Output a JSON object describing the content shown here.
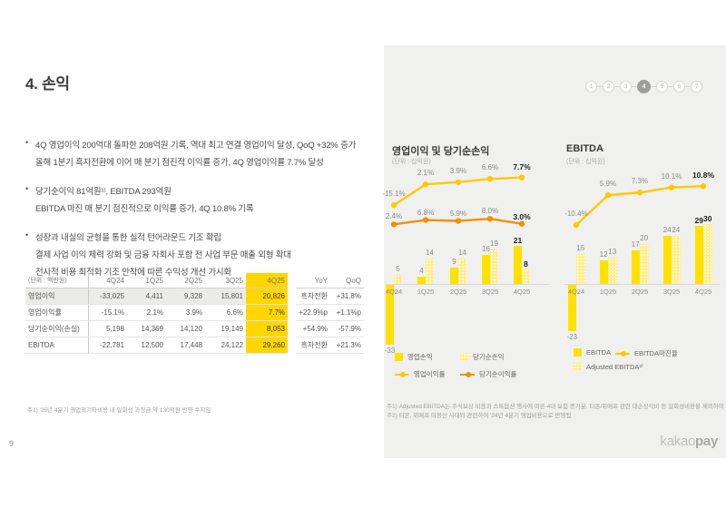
{
  "header": {
    "title": "4. 손익"
  },
  "bullets": [
    {
      "lines": [
        "4Q 영업이익 200억대 돌파한 208억원 기록, 역대 최고 연결 영업이익 달성, QoQ +32% 증가",
        "올해 1분기 흑자전환에 이어 매 분기 점진적 이익률 증가, 4Q 영업이익률 7.7% 달성"
      ]
    },
    {
      "lines": [
        "당기순이익 81억원¹⁾, EBITDA 293억원",
        "EBITDA 마진 매 분기 점진적으로 이익률 증가, 4Q 10.8% 기록"
      ]
    },
    {
      "lines": [
        "성장과 내실의 균형을 통한 실적 턴어라운드 기조 확립",
        "결제 사업 이익 체력 강화 및 금융 자회사 포함 전 사업 부문 매출 외형 확대",
        "전사적 비용 최적화 기조 안착에 따른 수익성 개선 가시화"
      ]
    }
  ],
  "table": {
    "unit_label": "(단위 : 백만원)",
    "columns": [
      "4Q24",
      "1Q25",
      "2Q25",
      "3Q25",
      "4Q25"
    ],
    "extra_columns": [
      "YoY",
      "QoQ"
    ],
    "rows": [
      {
        "label": "영업이익",
        "values": [
          "-33,025",
          "4,411",
          "9,328",
          "15,801",
          "20,826"
        ],
        "yoy": "흑자전환",
        "qoq": "+31.8%",
        "highlight_row": true
      },
      {
        "label": "영업이익률",
        "values": [
          "-15.1%",
          "2.1%",
          "3.9%",
          "6.6%",
          "7.7%"
        ],
        "yoy": "+22.9%p",
        "qoq": "+1.1%p",
        "highlight_row": false
      },
      {
        "label": "당기순이익(손실)",
        "values": [
          "5,198",
          "14,369",
          "14,120",
          "19,149",
          "8,053"
        ],
        "yoy": "+54.9%",
        "qoq": "-57.9%",
        "highlight_row": false
      },
      {
        "label": "EBITDA",
        "values": [
          "-22,781",
          "12,500",
          "17,448",
          "24,122",
          "29,260"
        ],
        "yoy": "흑자전환",
        "qoq": "+21.3%",
        "highlight_row": false
      }
    ]
  },
  "chart_data": [
    {
      "type": "bar",
      "title": "영업이익 및 당기순손익",
      "unit": "(단위 : 십억원)",
      "categories": [
        "4Q24",
        "1Q25",
        "2Q25",
        "3Q25",
        "4Q25"
      ],
      "series": [
        {
          "name": "영업손익",
          "type": "bar",
          "style": "solid",
          "values": [
            -33,
            4,
            9,
            16,
            21
          ]
        },
        {
          "name": "당기순손익",
          "type": "bar",
          "style": "pattern",
          "values": [
            5,
            14,
            14,
            19,
            8
          ]
        },
        {
          "name": "영업이익률",
          "type": "line",
          "color": "#FFC800",
          "labels": [
            "-15.1%",
            "2.1%",
            "3.9%",
            "6.6%",
            "7.7%"
          ]
        },
        {
          "name": "당기순이익률",
          "type": "line",
          "color": "#F29000",
          "labels": [
            "2.4%",
            "6.8%",
            "5.9%",
            "8.0%",
            "3.0%"
          ]
        }
      ],
      "legend_position": "bottom"
    },
    {
      "type": "bar",
      "title": "EBITDA",
      "unit": "(단위 : 십억원)",
      "categories": [
        "4Q24",
        "1Q25",
        "2Q25",
        "3Q25",
        "4Q25"
      ],
      "series": [
        {
          "name": "EBITDA",
          "type": "bar",
          "style": "solid",
          "values": [
            -23,
            12,
            17,
            24,
            29
          ]
        },
        {
          "name": "Adjusted EBITDA²⁾",
          "type": "bar",
          "style": "pattern",
          "values": [
            15,
            13,
            20,
            24,
            30
          ]
        },
        {
          "name": "EBITDA마진율",
          "type": "line",
          "color": "#FFC800",
          "labels": [
            "-10.4%",
            "5.9%",
            "7.3%",
            "10.1%",
            "10.8%"
          ]
        }
      ],
      "legend_position": "bottom"
    }
  ],
  "pagination": {
    "pages": [
      "1",
      "2",
      "3",
      "4",
      "5",
      "6",
      "7"
    ],
    "active_index": 3
  },
  "footnotes": {
    "left": "주1) '25년 4분기 영업외기타비용 내 일회성 과징금 약 130억원 반영 수치임",
    "right": [
      "주1) Adjusted EBITDA는 주식보상 비용과 스톡옵션 행사에 따른 4대 보험 증가분, 티몬/위메프 관련 대손상각비 등 일회성비용을 제외하여 계산",
      "주2) 티몬, 위메프 미정산 사태와 관련하여 '24년 4분기 영업비용으로 반영됨"
    ]
  },
  "footer": {
    "page_number": "9",
    "logo_kakao": "kakao",
    "logo_pay": "pay"
  },
  "colors": {
    "highlight_column": "#FFD600",
    "bar_solid": "#FFE100",
    "bar_pattern": "#FFEE8F",
    "line_yellow": "#FFC800",
    "line_orange": "#F29000",
    "panel_background": "#F0F0EE"
  }
}
